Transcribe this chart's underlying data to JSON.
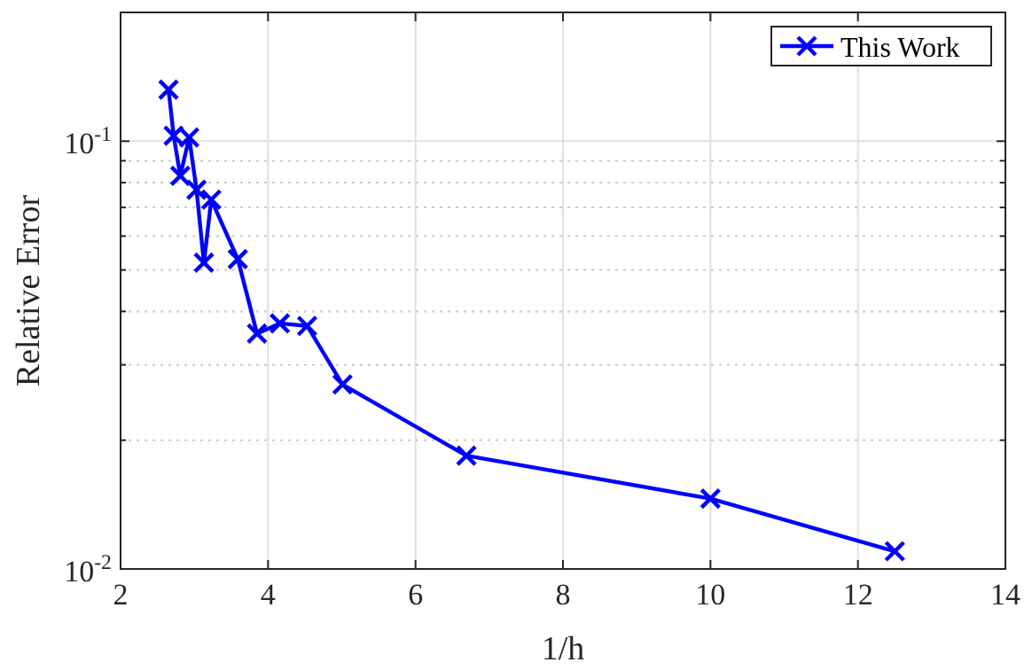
{
  "chart_data": {
    "type": "line",
    "xlabel": "1/h",
    "ylabel": "Relative Error",
    "log": "y",
    "grid": true,
    "legend": "top right",
    "marker": "cross",
    "line_style": "solid",
    "xlim": [
      2,
      14
    ],
    "xticks": [
      2,
      4,
      6,
      8,
      10,
      12,
      14
    ],
    "ylim": [
      0.01,
      0.2
    ],
    "yticks": [
      {
        "value": 0.01,
        "label": "10$^{-2}$"
      },
      {
        "value": 0.02,
        "label": null
      },
      {
        "value": 0.03,
        "label": null
      },
      {
        "value": 0.04,
        "label": null
      },
      {
        "value": 0.05,
        "label": null
      },
      {
        "value": 0.06,
        "label": null
      },
      {
        "value": 0.07,
        "label": null
      },
      {
        "value": 0.08,
        "label": null
      },
      {
        "value": 0.09,
        "label": null
      },
      {
        "value": 0.1,
        "label": "10$^{-1}$"
      }
    ],
    "series": [
      {
        "name": "This Work",
        "color": "#0000ff",
        "x": [
          2.65,
          2.72,
          2.81,
          2.93,
          3.03,
          3.13,
          3.23,
          3.59,
          3.85,
          4.16,
          4.53,
          5.01,
          6.69,
          10.0,
          12.5
        ],
        "values": [
          0.132,
          0.103,
          0.083,
          0.102,
          0.077,
          0.052,
          0.073,
          0.053,
          0.0355,
          0.0375,
          0.037,
          0.027,
          0.0184,
          0.0146,
          0.011
        ]
      }
    ]
  }
}
